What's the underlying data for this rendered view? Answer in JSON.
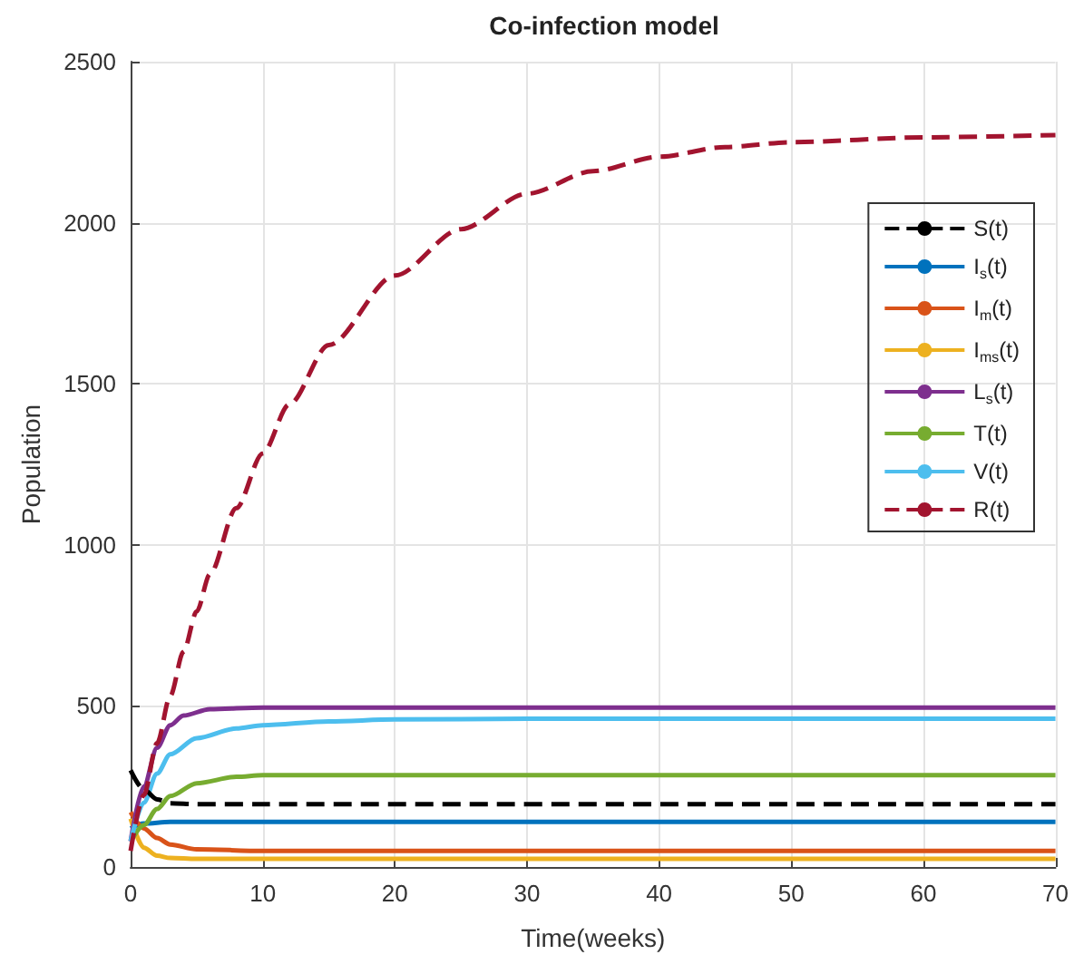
{
  "chart_data": {
    "type": "line",
    "title": "Co-infection model",
    "xlabel": "Time(weeks)",
    "ylabel": "Population",
    "xlim": [
      0,
      70
    ],
    "xticks": [
      0,
      10,
      20,
      30,
      40,
      50,
      60,
      70
    ],
    "ylim": [
      0,
      2500
    ],
    "yticks": [
      0,
      500,
      1000,
      1500,
      2000,
      2500
    ],
    "grid": true,
    "legend": "top right",
    "marker": "none",
    "series": [
      {
        "name": "S(t)",
        "color": "#000000",
        "line_style": "dashed",
        "x": [
          0,
          1,
          2,
          3,
          5,
          10,
          70
        ],
        "values": [
          300,
          240,
          210,
          198,
          195,
          195,
          195
        ]
      },
      {
        "name": "I$_{s}$(t)",
        "color": "#0072bd",
        "line_style": "solid",
        "x": [
          0,
          1,
          3,
          10,
          70
        ],
        "values": [
          120,
          135,
          140,
          140,
          140
        ]
      },
      {
        "name": "I$_{m}$(t)",
        "color": "#d95319",
        "line_style": "solid",
        "x": [
          0,
          1,
          2,
          3,
          5,
          10,
          70
        ],
        "values": [
          170,
          120,
          90,
          70,
          55,
          50,
          50
        ]
      },
      {
        "name": "I$_{ms}$(t)",
        "color": "#edb120",
        "line_style": "solid",
        "x": [
          0,
          1,
          2,
          3,
          5,
          10,
          70
        ],
        "values": [
          150,
          60,
          35,
          28,
          25,
          25,
          25
        ]
      },
      {
        "name": "L$_{s}$(t)",
        "color": "#7e2f8e",
        "line_style": "solid",
        "x": [
          0,
          1,
          2,
          3,
          4,
          6,
          10,
          70
        ],
        "values": [
          80,
          250,
          370,
          440,
          470,
          490,
          495,
          495
        ]
      },
      {
        "name": "T(t)",
        "color": "#77ac30",
        "line_style": "solid",
        "x": [
          0,
          1,
          2,
          3,
          5,
          8,
          10,
          70
        ],
        "values": [
          80,
          130,
          180,
          220,
          260,
          280,
          285,
          285
        ]
      },
      {
        "name": "V(t)",
        "color": "#4dbeee",
        "line_style": "solid",
        "x": [
          0,
          1,
          2,
          3,
          5,
          8,
          10,
          15,
          20,
          30,
          70
        ],
        "values": [
          80,
          200,
          290,
          350,
          400,
          430,
          440,
          452,
          458,
          460,
          460
        ]
      },
      {
        "name": "R(t)",
        "color": "#a2142f",
        "line_style": "dashed",
        "x": [
          0,
          1,
          2,
          3,
          4,
          5,
          6,
          8,
          10,
          12,
          15,
          20,
          25,
          30,
          35,
          40,
          45,
          50,
          60,
          70
        ],
        "values": [
          50,
          223,
          384,
          531,
          668,
          793,
          909,
          1114,
          1284,
          1436,
          1620,
          1836,
          1980,
          2090,
          2160,
          2205,
          2235,
          2250,
          2265,
          2272
        ]
      }
    ]
  }
}
